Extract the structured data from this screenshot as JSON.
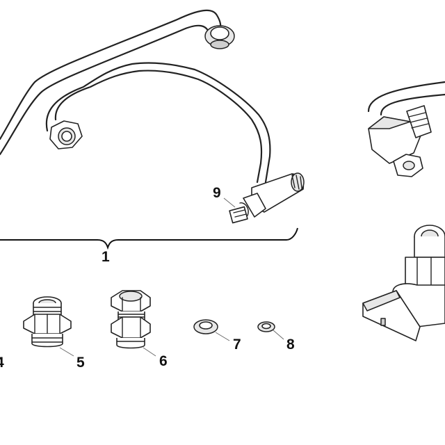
{
  "callouts": {
    "c1": "1",
    "c4": "4",
    "c5": "5",
    "c6": "6",
    "c7": "7",
    "c8": "8",
    "c9": "9"
  },
  "colors": {
    "line": "#222222",
    "shade": "#e7e7e7",
    "background": "#ffffff"
  }
}
